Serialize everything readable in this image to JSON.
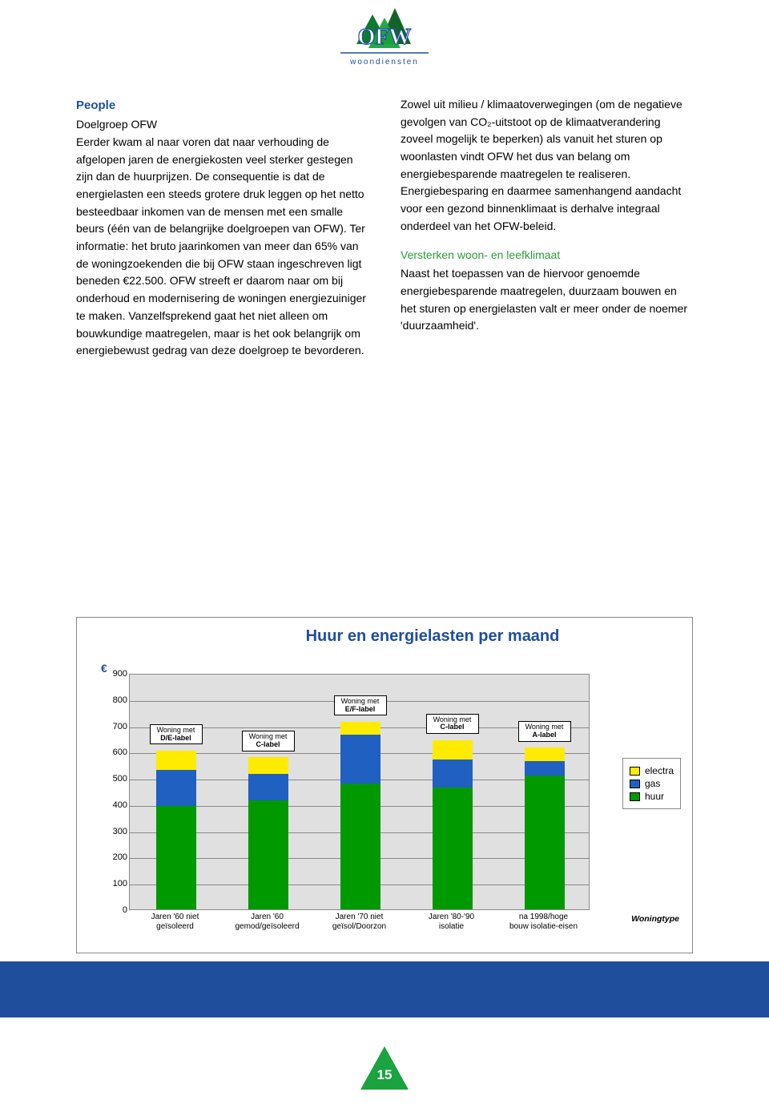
{
  "logo": {
    "text_top": "OFW",
    "text_bottom": "woondiensten"
  },
  "left_col": {
    "heading": "People",
    "p1": "Doelgroep OFW",
    "p2": "Eerder kwam al naar voren dat naar verhouding de afgelopen jaren de energiekosten veel sterker gestegen zijn dan de huurprijzen. De consequentie is dat de energielasten een steeds grotere druk leggen op het netto besteedbaar inkomen van de mensen met een smalle beurs (één van de belangrijke doelgroepen van OFW). Ter informatie: het bruto jaarinkomen van meer dan 65% van de woningzoekenden die bij OFW staan ingeschreven ligt beneden €22.500. OFW streeft er daarom naar om bij onderhoud en modernisering de woningen energiezuiniger te maken. Vanzelfsprekend gaat het niet alleen om bouwkundige maatregelen, maar is het ook belangrijk om energiebewust gedrag van deze doelgroep te bevorderen."
  },
  "right_col": {
    "p1": "Zowel uit milieu / klimaatoverwegingen (om de negatieve gevolgen van CO₂-uitstoot op de klimaatverandering zoveel mogelijk te beperken) als vanuit het sturen op woonlasten vindt OFW het dus van belang om energiebesparende maatregelen te realiseren. Energiebesparing en daarmee samenhangend aandacht voor een gezond binnenklimaat is derhalve integraal onderdeel van het OFW-beleid.",
    "heading2": "Versterken woon- en leefklimaat",
    "p2": "Naast het toepassen van de hiervoor genoemde energiebesparende maatregelen, duurzaam bouwen en het sturen op energielasten valt er meer onder de noemer 'duurzaamheid'."
  },
  "chart": {
    "title": "Huur en energielasten per maand",
    "currency": "€",
    "ylim": [
      0,
      900
    ],
    "ytick_step": 100,
    "yticks": [
      0,
      100,
      200,
      300,
      400,
      500,
      600,
      700,
      800,
      900
    ],
    "x_title": "Woningtype",
    "colors": {
      "huur": "#009900",
      "gas": "#2060c0",
      "electra": "#ffeb00",
      "plot_bg": "#e0e0e0",
      "grid": "#888888"
    },
    "legend": [
      {
        "label": "electra",
        "key": "electra"
      },
      {
        "label": "gas",
        "key": "gas"
      },
      {
        "label": "huur",
        "key": "huur"
      }
    ],
    "categories": [
      {
        "x_label_1": "Jaren '60 niet",
        "x_label_2": "geïsoleerd",
        "annotation": "Woning met\nD/E-label",
        "huur": 395,
        "gas": 135,
        "electra": 75
      },
      {
        "x_label_1": "Jaren '60",
        "x_label_2": "gemod/geïsoleerd",
        "annotation": "Woning met\nC-label",
        "huur": 415,
        "gas": 100,
        "electra": 65
      },
      {
        "x_label_1": "Jaren '70 niet",
        "x_label_2": "geïsol/Doorzon",
        "annotation": "Woning met\nE/F-label",
        "huur": 480,
        "gas": 185,
        "electra": 50
      },
      {
        "x_label_1": "Jaren '80-'90",
        "x_label_2": "isolatie",
        "annotation": "Woning met\nC-label",
        "huur": 465,
        "gas": 105,
        "electra": 75
      },
      {
        "x_label_1": "na 1998/hoge",
        "x_label_2": "bouw isolatie-eisen",
        "annotation": "Woning met\nA-label",
        "huur": 510,
        "gas": 55,
        "electra": 50
      }
    ]
  },
  "page_number": "15"
}
